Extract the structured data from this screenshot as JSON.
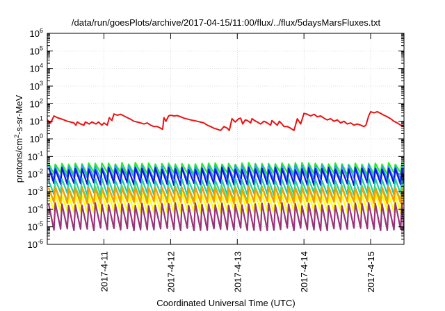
{
  "chart_data": {
    "type": "line",
    "title": "/data/run/goesPlots/archive/2017-04-15/11:00/flux/../flux/5daysMarsFluxes.txt",
    "xlabel": "Coordinated Universal Time (UTC)",
    "ylabel": {
      "base": "protons/cm",
      "sup": "2",
      "rest": "-s-sr-MeV"
    },
    "yscale": "log",
    "ylim": [
      1e-06,
      1000000.0
    ],
    "xlim_days": [
      10.15,
      15.5
    ],
    "x_ticks": [
      {
        "day": 11,
        "label": "2017-4-11"
      },
      {
        "day": 12,
        "label": "2017-4-12"
      },
      {
        "day": 13,
        "label": "2017-4-13"
      },
      {
        "day": 14,
        "label": "2017-4-14"
      },
      {
        "day": 15,
        "label": "2017-4-15"
      }
    ],
    "y_ticks": [
      {
        "exp": -6,
        "base": "10",
        "sup": "-6"
      },
      {
        "exp": -5,
        "base": "10",
        "sup": "-5"
      },
      {
        "exp": -4,
        "base": "10",
        "sup": "-4"
      },
      {
        "exp": -3,
        "base": "10",
        "sup": "-3"
      },
      {
        "exp": -2,
        "base": "10",
        "sup": "-2"
      },
      {
        "exp": -1,
        "base": "10",
        "sup": "-1"
      },
      {
        "exp": 0,
        "base": "10",
        "sup": "0"
      },
      {
        "exp": 1,
        "base": "10",
        "sup": "1"
      },
      {
        "exp": 2,
        "base": "10",
        "sup": "2"
      },
      {
        "exp": 3,
        "base": "10",
        "sup": "3"
      },
      {
        "exp": 4,
        "base": "10",
        "sup": "4"
      },
      {
        "exp": 5,
        "base": "10",
        "sup": "5"
      },
      {
        "exp": 6,
        "base": "10",
        "sup": "6"
      }
    ],
    "grid": true,
    "legend": "none",
    "series": [
      {
        "color": "#ee1111",
        "points": [
          [
            10.15,
            12
          ],
          [
            10.2,
            8
          ],
          [
            10.25,
            20
          ],
          [
            10.3,
            16
          ],
          [
            10.35,
            14
          ],
          [
            10.4,
            12
          ],
          [
            10.45,
            10
          ],
          [
            10.5,
            9
          ],
          [
            10.55,
            8
          ],
          [
            10.58,
            6
          ],
          [
            10.6,
            9
          ],
          [
            10.65,
            7
          ],
          [
            10.7,
            6
          ],
          [
            10.72,
            9
          ],
          [
            10.78,
            7
          ],
          [
            10.82,
            9
          ],
          [
            10.88,
            7
          ],
          [
            10.92,
            9
          ],
          [
            10.97,
            6
          ],
          [
            11.0,
            8
          ],
          [
            11.05,
            6
          ],
          [
            11.08,
            16
          ],
          [
            11.12,
            11
          ],
          [
            11.15,
            26
          ],
          [
            11.2,
            22
          ],
          [
            11.25,
            25
          ],
          [
            11.3,
            20
          ],
          [
            11.35,
            16
          ],
          [
            11.4,
            13
          ],
          [
            11.45,
            10
          ],
          [
            11.5,
            9
          ],
          [
            11.55,
            8
          ],
          [
            11.6,
            7
          ],
          [
            11.65,
            8
          ],
          [
            11.7,
            6
          ],
          [
            11.75,
            5
          ],
          [
            11.8,
            5
          ],
          [
            11.85,
            4
          ],
          [
            11.88,
            3.5
          ],
          [
            11.9,
            16
          ],
          [
            11.93,
            10
          ],
          [
            11.97,
            20
          ],
          [
            12.0,
            22
          ],
          [
            12.05,
            20
          ],
          [
            12.1,
            21
          ],
          [
            12.15,
            18
          ],
          [
            12.2,
            15
          ],
          [
            12.3,
            12
          ],
          [
            12.4,
            10
          ],
          [
            12.5,
            8
          ],
          [
            12.55,
            6
          ],
          [
            12.6,
            5
          ],
          [
            12.65,
            4
          ],
          [
            12.7,
            3.5
          ],
          [
            12.75,
            3
          ],
          [
            12.8,
            5
          ],
          [
            12.85,
            4
          ],
          [
            12.88,
            3
          ],
          [
            12.92,
            14
          ],
          [
            12.97,
            9
          ],
          [
            13.02,
            14
          ],
          [
            13.05,
            15
          ],
          [
            13.08,
            7
          ],
          [
            13.12,
            12
          ],
          [
            13.15,
            11
          ],
          [
            13.2,
            8
          ],
          [
            13.22,
            14
          ],
          [
            13.26,
            11
          ],
          [
            13.3,
            9
          ],
          [
            13.35,
            7
          ],
          [
            13.4,
            10
          ],
          [
            13.45,
            8
          ],
          [
            13.5,
            6
          ],
          [
            13.52,
            11
          ],
          [
            13.56,
            8
          ],
          [
            13.6,
            6
          ],
          [
            13.63,
            10
          ],
          [
            13.67,
            7
          ],
          [
            13.7,
            5
          ],
          [
            13.75,
            5
          ],
          [
            13.8,
            4
          ],
          [
            13.85,
            3
          ],
          [
            13.9,
            14
          ],
          [
            13.95,
            7
          ],
          [
            14.0,
            28
          ],
          [
            14.05,
            25
          ],
          [
            14.1,
            20
          ],
          [
            14.15,
            25
          ],
          [
            14.2,
            18
          ],
          [
            14.25,
            20
          ],
          [
            14.3,
            15
          ],
          [
            14.35,
            12
          ],
          [
            14.4,
            14
          ],
          [
            14.45,
            10
          ],
          [
            14.5,
            12
          ],
          [
            14.55,
            8
          ],
          [
            14.6,
            10
          ],
          [
            14.65,
            7
          ],
          [
            14.7,
            8
          ],
          [
            14.75,
            6
          ],
          [
            14.8,
            7
          ],
          [
            14.85,
            6
          ],
          [
            14.9,
            5
          ],
          [
            14.93,
            6
          ],
          [
            14.97,
            20
          ],
          [
            15.0,
            35
          ],
          [
            15.05,
            30
          ],
          [
            15.1,
            35
          ],
          [
            15.15,
            28
          ],
          [
            15.2,
            22
          ],
          [
            15.25,
            18
          ],
          [
            15.3,
            14
          ],
          [
            15.35,
            10
          ],
          [
            15.4,
            8
          ],
          [
            15.45,
            6
          ],
          [
            15.5,
            5
          ]
        ]
      },
      {
        "color": "#22ee22",
        "base": 0.018,
        "amp": 2.2,
        "noise": 0.25
      },
      {
        "color": "#3399ff",
        "base": 0.009,
        "amp": 3.2,
        "noise": 0.3
      },
      {
        "color": "#1111dd",
        "base": 0.0045,
        "amp": 4.5,
        "noise": 0.35
      },
      {
        "color": "#22ccaa",
        "base": 0.0012,
        "amp": 4.2,
        "noise": 0.3
      },
      {
        "color": "#66dd44",
        "base": 0.0005,
        "amp": 3.8,
        "noise": 0.3
      },
      {
        "color": "#ffff00",
        "base": 0.00012,
        "amp": 6.0,
        "noise": 0.35
      },
      {
        "color": "#ff9900",
        "base": 0.0004,
        "amp": 4.0,
        "noise": 0.35
      },
      {
        "color": "#993377",
        "base": 1.2e-05,
        "amp": 16.0,
        "noise": 0.4
      }
    ]
  }
}
